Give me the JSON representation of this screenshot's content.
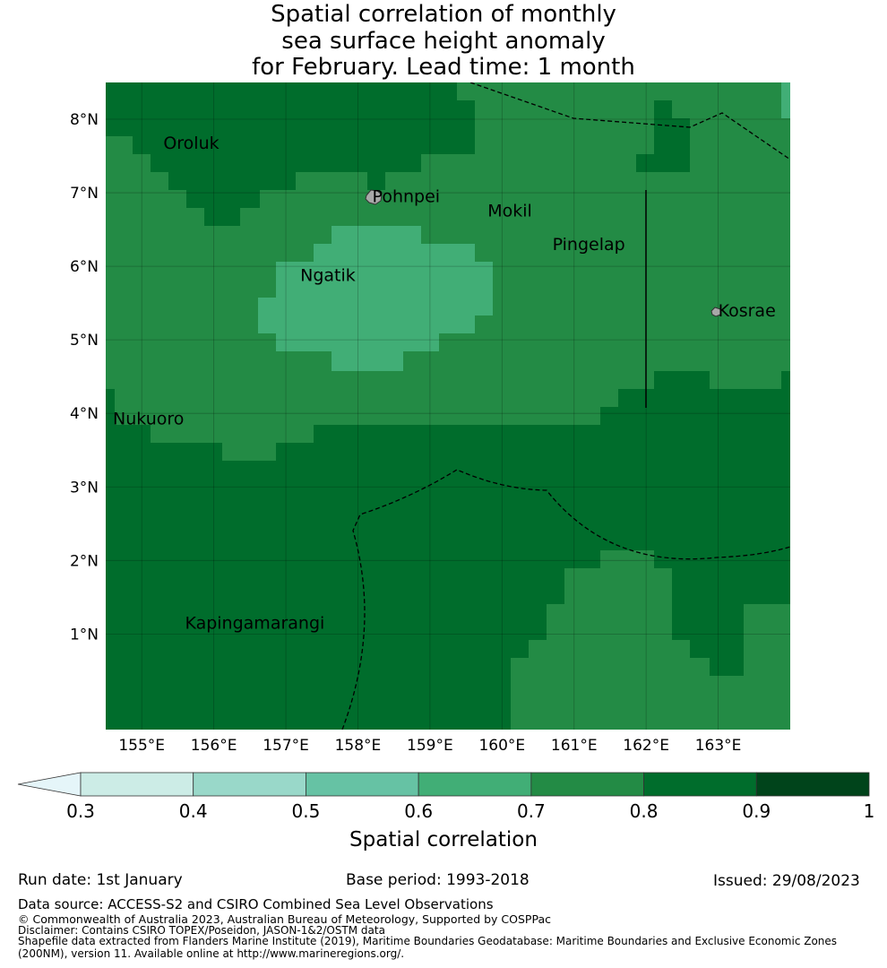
{
  "title": {
    "line1": "Spatial correlation of monthly",
    "line2": "sea surface height anomaly",
    "line3": "for February. Lead time: 1 month"
  },
  "map": {
    "lon_range": [
      154.5,
      164.0
    ],
    "lat_range": [
      -0.3,
      8.5
    ],
    "lon_ticks": [
      {
        "value": 155,
        "label": "155°E"
      },
      {
        "value": 156,
        "label": "156°E"
      },
      {
        "value": 157,
        "label": "157°E"
      },
      {
        "value": 158,
        "label": "158°E"
      },
      {
        "value": 159,
        "label": "159°E"
      },
      {
        "value": 160,
        "label": "160°E"
      },
      {
        "value": 161,
        "label": "161°E"
      },
      {
        "value": 162,
        "label": "162°E"
      },
      {
        "value": 163,
        "label": "163°E"
      }
    ],
    "lat_ticks": [
      {
        "value": 1,
        "label": "1°N"
      },
      {
        "value": 2,
        "label": "2°N"
      },
      {
        "value": 3,
        "label": "3°N"
      },
      {
        "value": 4,
        "label": "4°N"
      },
      {
        "value": 5,
        "label": "5°N"
      },
      {
        "value": 6,
        "label": "6°N"
      },
      {
        "value": 7,
        "label": "7°N"
      },
      {
        "value": 8,
        "label": "8°N"
      }
    ],
    "islands": [
      {
        "name": "Oroluk",
        "lon": 155.3,
        "lat": 7.6
      },
      {
        "name": "Pohnpei",
        "lon": 158.2,
        "lat": 6.87
      },
      {
        "name": "Mokil",
        "lon": 159.8,
        "lat": 6.68
      },
      {
        "name": "Pingelap",
        "lon": 160.7,
        "lat": 6.22
      },
      {
        "name": "Ngatik",
        "lon": 157.2,
        "lat": 5.8
      },
      {
        "name": "Kosrae",
        "lon": 163.0,
        "lat": 5.32
      },
      {
        "name": "Nukuoro",
        "lon": 154.6,
        "lat": 3.85
      },
      {
        "name": "Kapingamarangi",
        "lon": 155.6,
        "lat": 1.07
      }
    ],
    "landmass_color": "#a8a8a8"
  },
  "chart_data": {
    "type": "heatmap",
    "title": "Spatial correlation of monthly sea surface height anomaly for February. Lead time: 1 month",
    "region": {
      "lon": [
        154.5,
        164.0
      ],
      "lat": [
        -0.3,
        8.5
      ],
      "cell_deg": 0.25
    },
    "dominant_ranges": [
      {
        "range": [
          0.6,
          0.7
        ],
        "area": "central band around Ngatik, 5-6.5°N, 156.8-159.5°E"
      },
      {
        "range": [
          0.7,
          0.8
        ],
        "area": "central band 3.5-7.5°N and south-east 0-1.5°N, 160.2-164°E"
      },
      {
        "range": [
          0.8,
          0.9
        ],
        "area": "north (Oroluk) and south (0-3.5°N) of the domain"
      }
    ]
  },
  "colorbar": {
    "label": "Spatial correlation",
    "ticks": [
      "0.3",
      "0.4",
      "0.5",
      "0.6",
      "0.7",
      "0.8",
      "0.9",
      "1"
    ],
    "colors": [
      "#ccece6",
      "#99d8c9",
      "#66c2a4",
      "#41ae76",
      "#238b45",
      "#006d2c",
      "#00441b"
    ],
    "extend_color": "#e5f5f9"
  },
  "footer": {
    "run_date": "Run date: 1st January",
    "base_period": "Base period: 1993-2018",
    "issued": "Issued: 29/08/2023",
    "data_source": "Data source: ACCESS-S2 and CSIRO Combined Sea Level Observations",
    "copyright": "© Commonwealth of Australia 2023, Australian Bureau of Meteorology, Supported by COSPPac",
    "disclaimer": "Disclaimer: Contains CSIRO TOPEX/Poseidon, JASON-1&2/OSTM data",
    "shapefile1": "Shapefile data extracted from Flanders Marine Institute (2019), Maritime Boundaries Geodatabase: Maritime Boundaries and Exclusive Economic Zones",
    "shapefile2": "(200NM), version 11. Available online at http://www.marineregions.org/."
  }
}
